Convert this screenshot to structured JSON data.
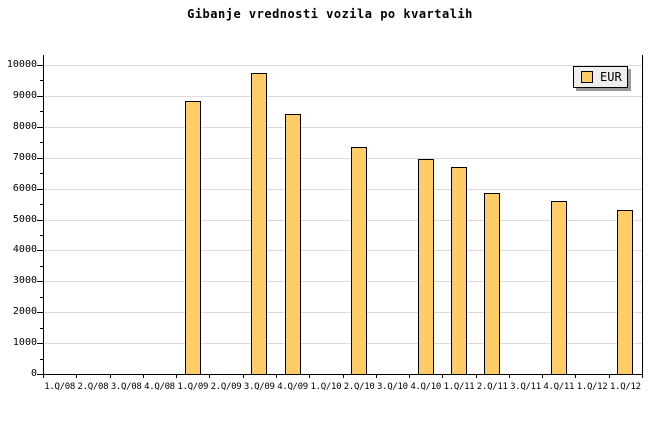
{
  "title": "Gibanje vrednosti vozila po kvartalih",
  "legend": {
    "label": "EUR",
    "swatch_color": "#FFCC66",
    "position": "top-right"
  },
  "chart_data": {
    "type": "bar",
    "title": "Gibanje vrednosti vozila po kvartalih",
    "categories": [
      "1.Q/08",
      "2.Q/08",
      "3.Q/08",
      "4.Q/08",
      "1.Q/09",
      "2.Q/09",
      "3.Q/09",
      "4.Q/09",
      "1.Q/10",
      "2.Q/10",
      "3.Q/10",
      "4.Q/10",
      "1.Q/11",
      "2.Q/11",
      "3.Q/11",
      "4.Q/11",
      "1.Q/12",
      "1.Q/12"
    ],
    "series": [
      {
        "name": "EUR",
        "values": [
          null,
          null,
          null,
          null,
          8850,
          null,
          9750,
          8400,
          null,
          7350,
          null,
          6950,
          6700,
          5850,
          null,
          5600,
          null,
          5300
        ]
      }
    ],
    "xlabel": "",
    "ylabel": "",
    "ylim": [
      0,
      10000
    ],
    "ytick_major_step": 1000,
    "ytick_minor_step": 500,
    "grid": "horizontal-major",
    "legend_position": "top-right",
    "colors": {
      "bar_fill": "#FFCC66",
      "bar_border": "#000000",
      "grid": "#DCDCDC",
      "axis": "#000000",
      "legend_bg": "#EEEEEE",
      "legend_shadow": "#999999",
      "background": "#FFFFFF"
    }
  }
}
